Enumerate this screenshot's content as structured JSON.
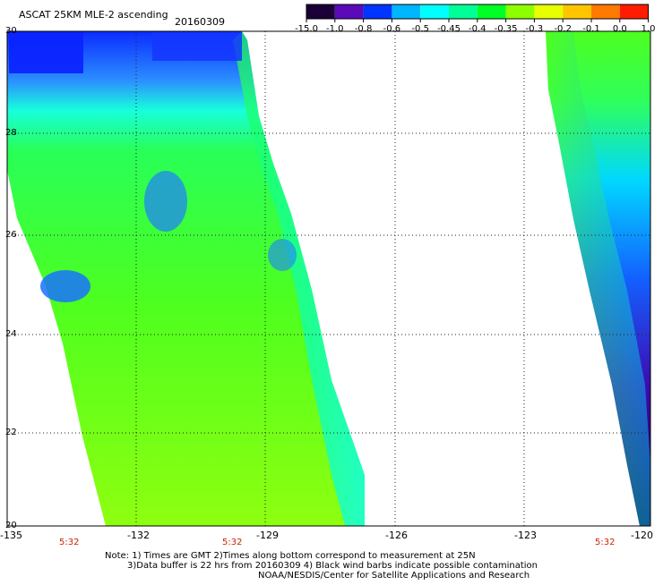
{
  "header": {
    "title": "ASCAT 25KM MLE-2 ascending",
    "date": "20160309"
  },
  "legend": {
    "colors": [
      "#1a0036",
      "#5a0ab8",
      "#0035ff",
      "#00b6ff",
      "#00ffff",
      "#00ff96",
      "#00ff24",
      "#8dff00",
      "#e7ff00",
      "#ffc600",
      "#ff7a00",
      "#ff1c00"
    ],
    "labels": [
      "-15.0",
      "-1.0",
      "-0.8",
      "-0.6",
      "-0.5",
      "-0.45",
      "-0.4",
      "-0.35",
      "-0.3",
      "-0.2",
      "-0.1",
      "0.0",
      "1.0"
    ]
  },
  "map": {
    "x_ticks": [
      "-135",
      "-132",
      "-129",
      "-126",
      "-123",
      "-120"
    ],
    "y_ticks": [
      "30",
      "28",
      "26",
      "24",
      "22",
      "20"
    ],
    "time_labels": [
      "5:32",
      "5:32",
      "5:32"
    ]
  },
  "notes": {
    "line1": "Note: 1) Times are GMT 2)Times along bottom correspond to measurement at 25N",
    "line2": "3)Data buffer is 22 hrs from 20160309 4) Black wind barbs indicate possible contamination",
    "line3": "NOAA/NESDIS/Center for Satellite Applications and Research"
  }
}
